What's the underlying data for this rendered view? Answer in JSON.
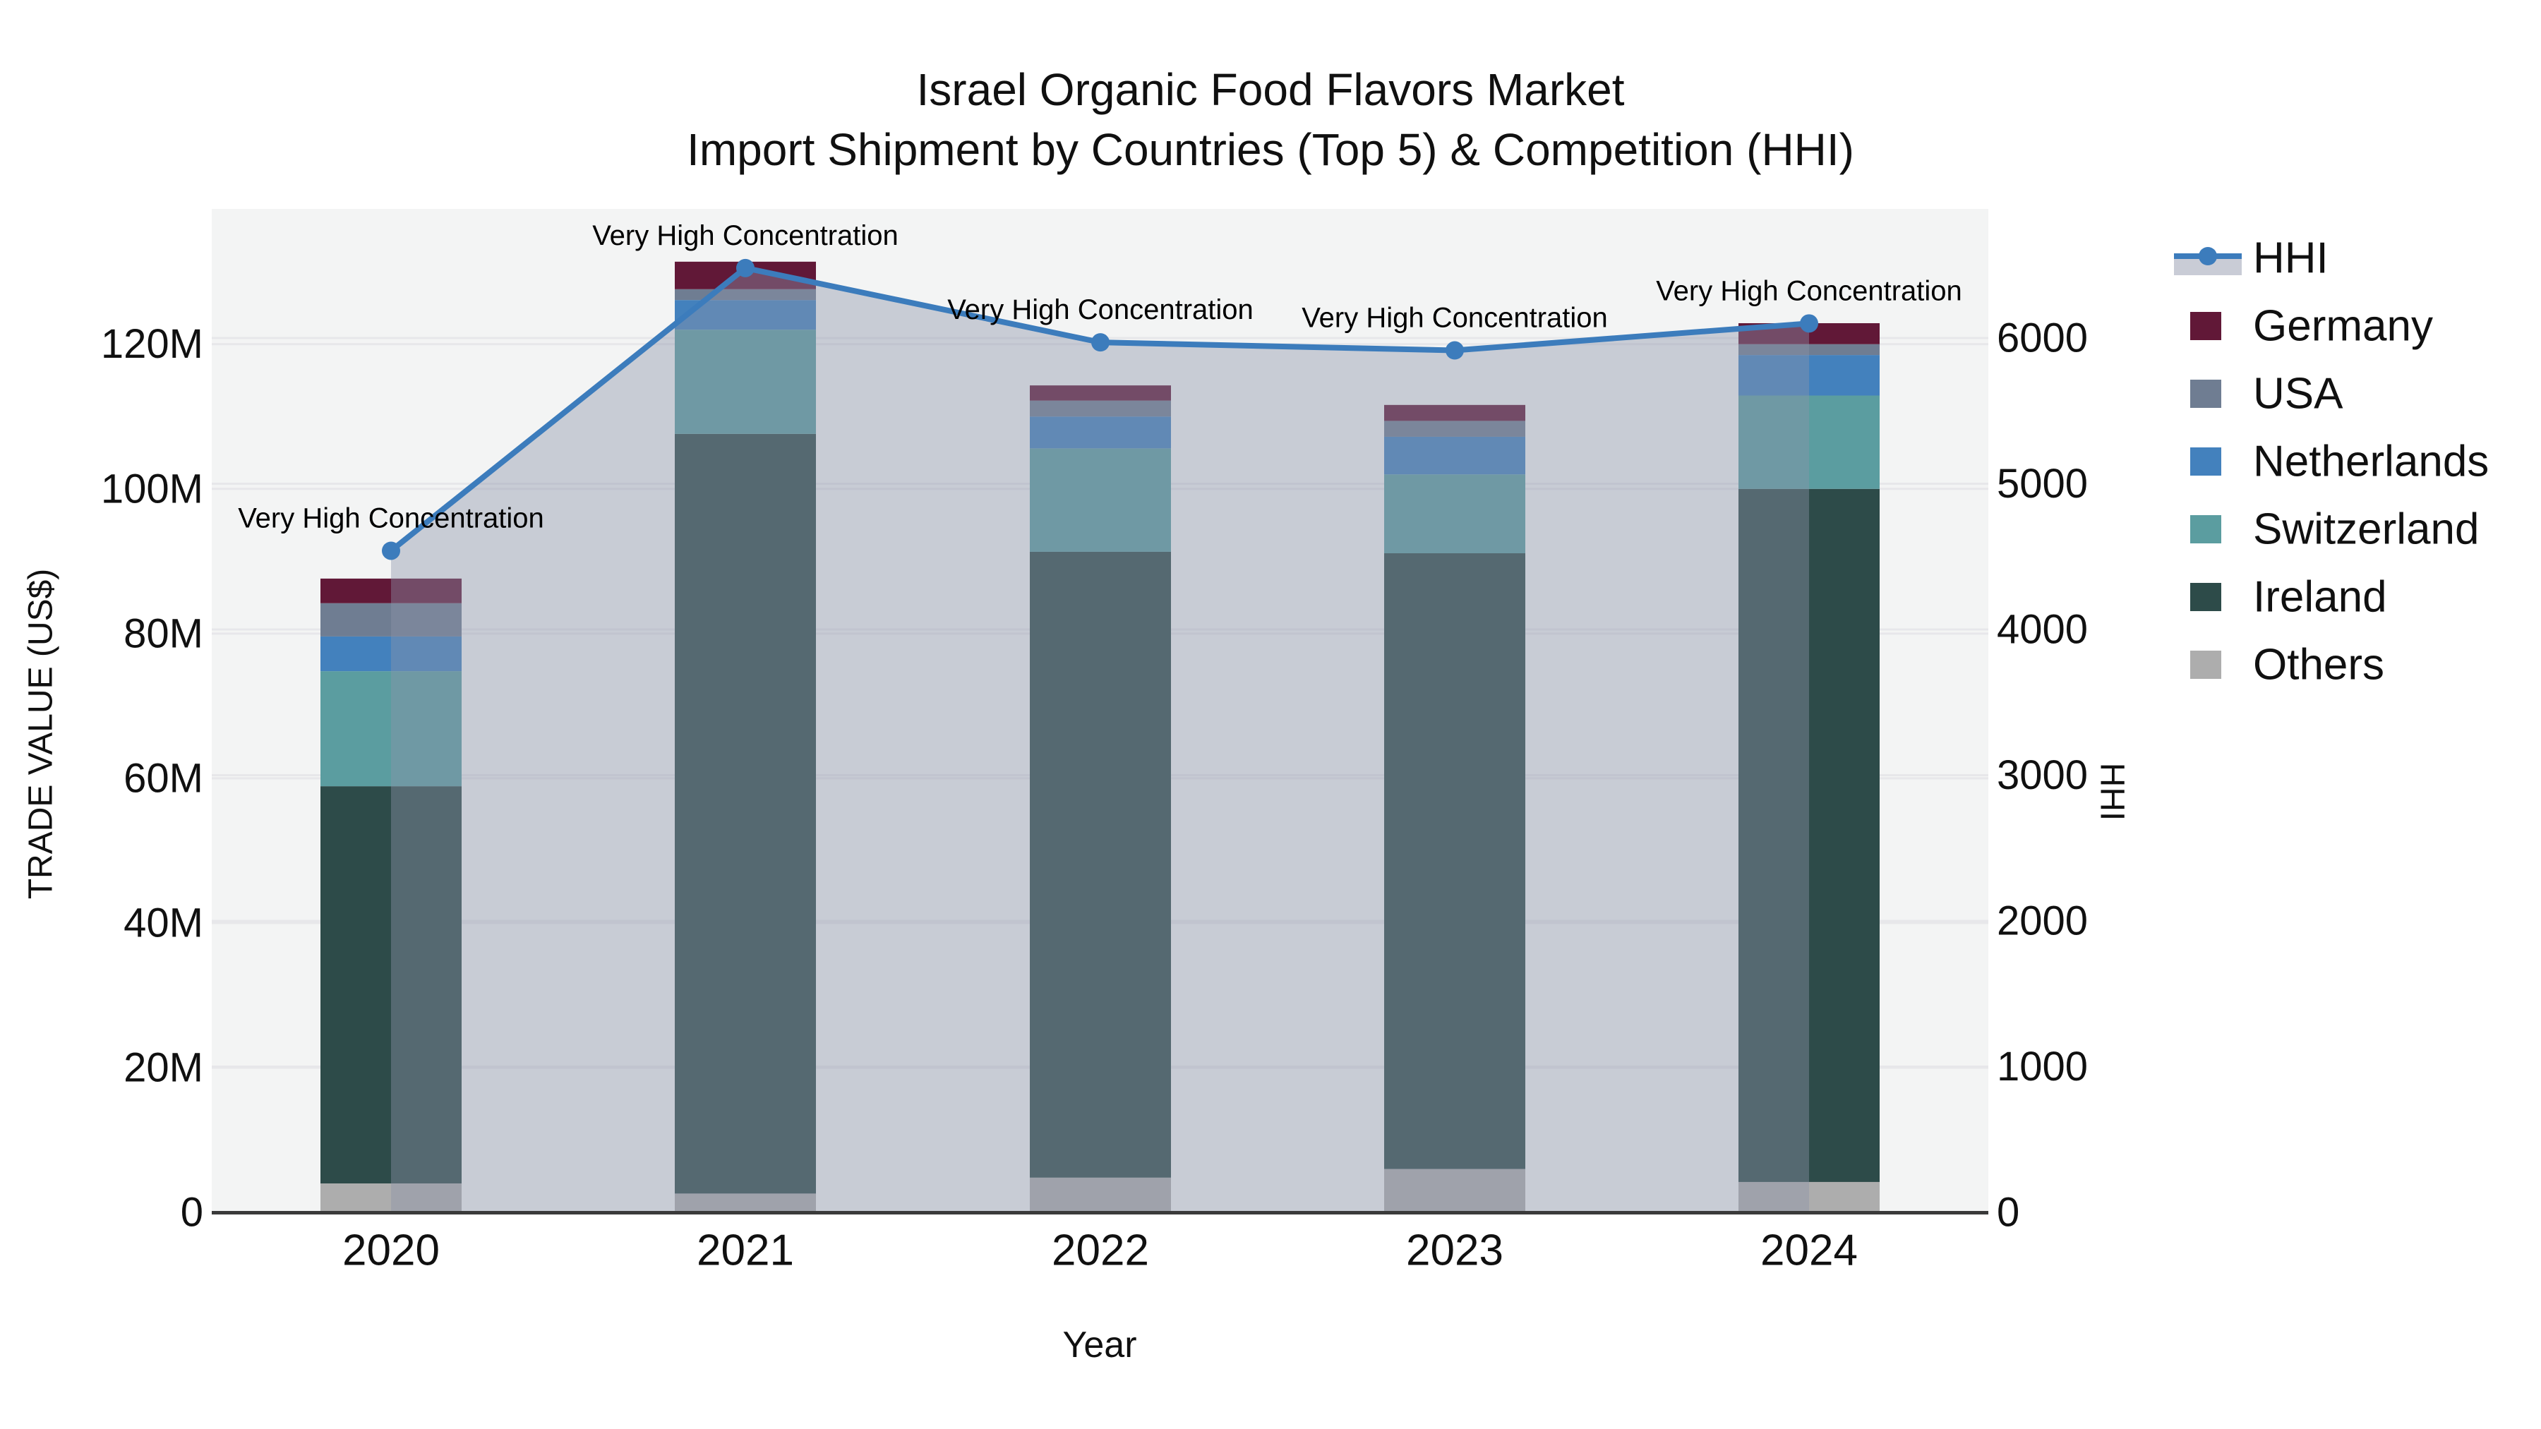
{
  "title": {
    "line1": "Israel Organic Food Flavors Market",
    "line2": "Import Shipment by Countries (Top 5) & Competition (HHI)"
  },
  "axes": {
    "x": {
      "title": "Year",
      "tick_labels": [
        "2020",
        "2021",
        "2022",
        "2023",
        "2024"
      ]
    },
    "y_left": {
      "title": "TRADE VALUE (US$)",
      "tick_labels": [
        "0",
        "20M",
        "40M",
        "60M",
        "80M",
        "100M",
        "120M"
      ],
      "tick_values_M": [
        0,
        20,
        40,
        60,
        80,
        100,
        120
      ]
    },
    "y_right": {
      "title": "HHI",
      "tick_labels": [
        "0",
        "1000",
        "2000",
        "3000",
        "4000",
        "5000",
        "6000"
      ],
      "tick_values": [
        0,
        1000,
        2000,
        3000,
        4000,
        5000,
        6000
      ]
    }
  },
  "legend": {
    "items": [
      {
        "label": "HHI",
        "glyph": "line-marker",
        "color": "#3c7cbc",
        "band_color": "#c9ccd6"
      },
      {
        "label": "Germany",
        "glyph": "swatch",
        "color": "#611837"
      },
      {
        "label": "USA",
        "glyph": "swatch",
        "color": "#6f7d92"
      },
      {
        "label": "Netherlands",
        "glyph": "swatch",
        "color": "#4381bd"
      },
      {
        "label": "Switzerland",
        "glyph": "swatch",
        "color": "#5b9da0"
      },
      {
        "label": "Ireland",
        "glyph": "swatch",
        "color": "#2d4b49"
      },
      {
        "label": "Others",
        "glyph": "swatch",
        "color": "#adadad"
      }
    ]
  },
  "chart_data": {
    "type": "bar+line",
    "bar_mode": "stacked",
    "categories": [
      "2020",
      "2021",
      "2022",
      "2023",
      "2024"
    ],
    "value_unit": "million US$",
    "series": [
      {
        "name": "Others",
        "color": "#adadad",
        "values": [
          4.0,
          2.6,
          4.8,
          6.0,
          4.2
        ]
      },
      {
        "name": "Ireland",
        "color": "#2d4b49",
        "values": [
          54.9,
          105.0,
          86.5,
          85.1,
          95.8
        ]
      },
      {
        "name": "Switzerland",
        "color": "#5b9da0",
        "values": [
          15.9,
          14.4,
          14.3,
          10.9,
          12.9
        ]
      },
      {
        "name": "Netherlands",
        "color": "#4381bd",
        "values": [
          4.8,
          4.1,
          4.4,
          5.2,
          5.6
        ]
      },
      {
        "name": "USA",
        "color": "#6f7d92",
        "values": [
          4.6,
          1.5,
          2.2,
          2.2,
          1.5
        ]
      },
      {
        "name": "Germany",
        "color": "#611837",
        "values": [
          3.4,
          3.8,
          2.1,
          2.2,
          2.9
        ]
      }
    ],
    "stack_order": "bottom-to-top as listed",
    "stack_totals_M": [
      87.6,
      131.4,
      114.3,
      111.6,
      122.9
    ],
    "line": {
      "name": "HHI",
      "axis": "right",
      "color": "#3c7cbc",
      "area_fill": "rgba(140,148,170,0.42)",
      "values": [
        4540,
        6480,
        5970,
        5915,
        6100
      ]
    },
    "annotations": [
      "Very High Concentration",
      "Very High Concentration",
      "Very High Concentration",
      "Very High Concentration",
      "Very High Concentration"
    ],
    "title": "Israel Organic Food Flavors Market — Import Shipment by Countries (Top 5) & Competition (HHI)",
    "xlabel": "Year",
    "ylabel_left": "TRADE VALUE (US$)",
    "ylabel_right": "HHI",
    "ylim_left_M": [
      0,
      138.7
    ],
    "ylim_right": [
      0,
      6886
    ],
    "grid": true,
    "legend_position": "right",
    "plot_bg": "#f3f4f4",
    "grid_color": "#e7e7ea",
    "axisline_color": "#3a3a3a"
  }
}
